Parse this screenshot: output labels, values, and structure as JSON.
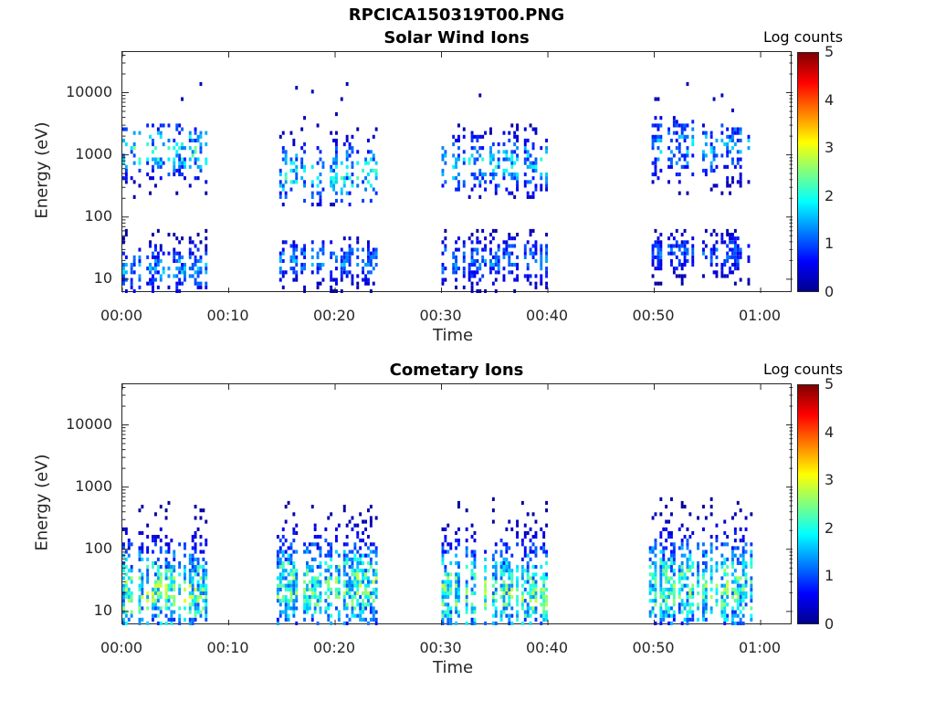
{
  "figure": {
    "title": "RPCICA150319T00.PNG"
  },
  "chart_data": [
    {
      "type": "heatmap",
      "title": "Solar Wind Ions",
      "xlabel": "Time",
      "ylabel": "Energy (eV)",
      "y_scale": "log",
      "ylim": [
        6,
        45000
      ],
      "xlim_min": [
        0,
        63
      ],
      "x_tick_labels": [
        "00:00",
        "00:10",
        "00:20",
        "00:30",
        "00:40",
        "00:50",
        "01:00"
      ],
      "x_tick_values_min": [
        0,
        10,
        20,
        30,
        40,
        50,
        60
      ],
      "y_tick_labels": [
        "10",
        "100",
        "1000",
        "10000"
      ],
      "y_tick_values": [
        10,
        100,
        1000,
        10000
      ],
      "colorbar": {
        "label": "Log counts",
        "range": [
          0,
          5
        ],
        "tick_labels": [
          "0",
          "1",
          "2",
          "3",
          "4",
          "5"
        ],
        "colormap": "jet"
      },
      "clusters": [
        {
          "t_range_min": [
            0,
            8
          ],
          "upper_band_ev": [
            200,
            3000
          ],
          "upper_peak_ev": 1200,
          "lower_band_ev": [
            6,
            60
          ],
          "lower_peak_ev": 15,
          "max_log_counts": 3.0
        },
        {
          "t_range_min": [
            14.5,
            24
          ],
          "upper_band_ev": [
            150,
            3000
          ],
          "upper_peak_ev": 500,
          "lower_band_ev": [
            6,
            50
          ],
          "lower_peak_ev": 20,
          "max_log_counts": 2.8
        },
        {
          "t_range_min": [
            30,
            40
          ],
          "upper_band_ev": [
            200,
            3000
          ],
          "upper_peak_ev": 700,
          "lower_band_ev": [
            6,
            60
          ],
          "lower_peak_ev": 20,
          "max_log_counts": 2.6
        },
        {
          "t_range_min": [
            49.5,
            59.5
          ],
          "upper_band_ev": [
            200,
            4000
          ],
          "upper_peak_ev": 1300,
          "lower_band_ev": [
            8,
            60
          ],
          "lower_peak_ev": 25,
          "max_log_counts": 2.3
        }
      ]
    },
    {
      "type": "heatmap",
      "title": "Cometary Ions",
      "xlabel": "Time",
      "ylabel": "Energy (eV)",
      "y_scale": "log",
      "ylim": [
        6,
        45000
      ],
      "xlim_min": [
        0,
        63
      ],
      "x_tick_labels": [
        "00:00",
        "00:10",
        "00:20",
        "00:30",
        "00:40",
        "00:50",
        "01:00"
      ],
      "x_tick_values_min": [
        0,
        10,
        20,
        30,
        40,
        50,
        60
      ],
      "y_tick_labels": [
        "10",
        "100",
        "1000",
        "10000"
      ],
      "y_tick_values": [
        10,
        100,
        1000,
        10000
      ],
      "colorbar": {
        "label": "Log counts",
        "range": [
          0,
          5
        ],
        "tick_labels": [
          "0",
          "1",
          "2",
          "3",
          "4",
          "5"
        ],
        "colormap": "jet"
      },
      "clusters": [
        {
          "t_range_min": [
            0,
            8
          ],
          "band_ev": [
            6,
            600
          ],
          "peak_ev": 20,
          "max_log_counts": 3.1
        },
        {
          "t_range_min": [
            14.5,
            24
          ],
          "band_ev": [
            6,
            600
          ],
          "peak_ev": 25,
          "max_log_counts": 3.0
        },
        {
          "t_range_min": [
            30,
            40
          ],
          "band_ev": [
            6,
            700
          ],
          "peak_ev": 20,
          "max_log_counts": 3.0
        },
        {
          "t_range_min": [
            49.5,
            59.5
          ],
          "band_ev": [
            6,
            700
          ],
          "peak_ev": 25,
          "max_log_counts": 3.0
        }
      ]
    }
  ]
}
